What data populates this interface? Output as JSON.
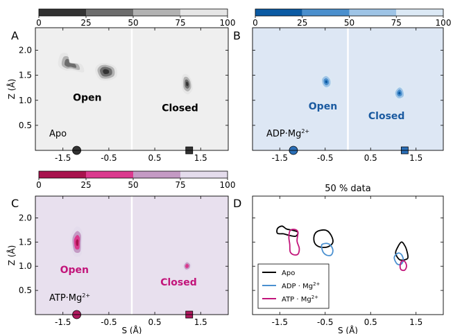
{
  "figure": {
    "colorbar_ticks": [
      "0",
      "25",
      "50",
      "75",
      "100"
    ],
    "center_title": "50 % data",
    "panel_letters": [
      "A",
      "B",
      "C",
      "D"
    ]
  },
  "chart_data": [
    {
      "type": "heatmap",
      "panel": "A",
      "ylabel": "Z (Å)",
      "xlabel": "",
      "condition": "Apo",
      "xlim": [
        -2.1,
        2.1
      ],
      "ylim": [
        0,
        2.45
      ],
      "x_ticks": [
        "-1.5",
        "-0.5",
        "0.5",
        "1.5"
      ],
      "y_ticks": [
        "0.5",
        "1.0",
        "1.5",
        "2.0"
      ],
      "background": "#efefef",
      "colorbar_colors": [
        "#333333",
        "#6d6d6d",
        "#b2b2b2",
        "#e6e6e6"
      ],
      "labels": {
        "open": "Open",
        "closed": "Closed"
      },
      "label_color": "#000000",
      "dividing_line_s": 0
    },
    {
      "type": "heatmap",
      "panel": "B",
      "ylabel": "",
      "xlabel": "",
      "condition": "ADP·Mg",
      "condition_sup": "2+",
      "xlim": [
        -2.1,
        2.1
      ],
      "ylim": [
        0,
        2.45
      ],
      "x_ticks": [
        "-1.5",
        "-0.5",
        "0.5",
        "1.5"
      ],
      "y_ticks": [],
      "background": "#dde7f4",
      "colorbar_colors": [
        "#0b5aa3",
        "#4a8fcd",
        "#9ec4e6",
        "#dce9f5"
      ],
      "labels": {
        "open": "Open",
        "closed": "Closed"
      },
      "label_color": "#1a5aa0",
      "dividing_line_s": 0
    },
    {
      "type": "heatmap",
      "panel": "C",
      "ylabel": "Z (Å)",
      "xlabel": "S (Å)",
      "condition": "ATP·Mg",
      "condition_sup": "2+",
      "xlim": [
        -2.1,
        2.1
      ],
      "ylim": [
        0,
        2.45
      ],
      "x_ticks": [
        "-1.5",
        "-0.5",
        "0.5",
        "1.5"
      ],
      "y_ticks": [
        "0.5",
        "1.0",
        "1.5",
        "2.0"
      ],
      "background": "#e8e0ee",
      "colorbar_colors": [
        "#a8134e",
        "#db3a8e",
        "#c49ac4",
        "#e4dcec"
      ],
      "labels": {
        "open": "Open",
        "closed": "Closed"
      },
      "label_color": "#c2147a",
      "dividing_line_s": 0
    },
    {
      "type": "line",
      "panel": "D",
      "ylabel": "",
      "xlabel": "S (Å)",
      "xlim": [
        -2.1,
        2.1
      ],
      "ylim": [
        0,
        2.45
      ],
      "x_ticks": [
        "-1.5",
        "-0.5",
        "0.5",
        "1.5"
      ],
      "y_ticks": [],
      "legend_position": "lower-left",
      "series": [
        {
          "name": "Apo",
          "color": "#000000",
          "contours": [
            [
              [
                -1.55,
                1.78
              ],
              [
                -1.45,
                1.83
              ],
              [
                -1.35,
                1.77
              ],
              [
                -1.2,
                1.74
              ],
              [
                -1.1,
                1.7
              ],
              [
                -1.15,
                1.62
              ],
              [
                -1.3,
                1.64
              ],
              [
                -1.42,
                1.67
              ],
              [
                -1.55,
                1.68
              ],
              [
                -1.55,
                1.78
              ]
            ],
            [
              [
                -0.75,
                1.55
              ],
              [
                -0.72,
                1.68
              ],
              [
                -0.62,
                1.74
              ],
              [
                -0.47,
                1.74
              ],
              [
                -0.37,
                1.64
              ],
              [
                -0.33,
                1.5
              ],
              [
                -0.42,
                1.41
              ],
              [
                -0.57,
                1.39
              ],
              [
                -0.7,
                1.44
              ],
              [
                -0.75,
                1.55
              ]
            ],
            [
              [
                1.1,
                1.4
              ],
              [
                1.05,
                1.27
              ],
              [
                1.13,
                1.14
              ],
              [
                1.23,
                1.13
              ],
              [
                1.32,
                1.17
              ],
              [
                1.3,
                1.31
              ],
              [
                1.25,
                1.43
              ],
              [
                1.18,
                1.5
              ],
              [
                1.1,
                1.4
              ]
            ]
          ]
        },
        {
          "name": "ADP · Mg",
          "sup": "2+",
          "color": "#4a90d0",
          "contours": [
            [
              [
                -0.58,
                1.42
              ],
              [
                -0.55,
                1.3
              ],
              [
                -0.47,
                1.23
              ],
              [
                -0.37,
                1.23
              ],
              [
                -0.33,
                1.32
              ],
              [
                -0.37,
                1.42
              ],
              [
                -0.45,
                1.47
              ],
              [
                -0.55,
                1.46
              ],
              [
                -0.58,
                1.42
              ]
            ],
            [
              [
                1.02,
                1.18
              ],
              [
                1.08,
                1.05
              ],
              [
                1.17,
                1.04
              ],
              [
                1.22,
                1.13
              ],
              [
                1.18,
                1.24
              ],
              [
                1.1,
                1.27
              ],
              [
                1.02,
                1.18
              ]
            ]
          ]
        },
        {
          "name": "ATP · Mg",
          "sup": "2+",
          "color": "#c2147a",
          "contours": [
            [
              [
                -1.3,
                1.6
              ],
              [
                -1.27,
                1.74
              ],
              [
                -1.16,
                1.76
              ],
              [
                -1.1,
                1.7
              ],
              [
                -1.12,
                1.52
              ],
              [
                -1.07,
                1.37
              ],
              [
                -1.1,
                1.25
              ],
              [
                -1.2,
                1.24
              ],
              [
                -1.27,
                1.3
              ],
              [
                -1.28,
                1.45
              ],
              [
                -1.3,
                1.6
              ]
            ],
            [
              [
                1.15,
                1.02
              ],
              [
                1.17,
                0.93
              ],
              [
                1.25,
                0.92
              ],
              [
                1.29,
                1.0
              ],
              [
                1.26,
                1.09
              ],
              [
                1.19,
                1.11
              ],
              [
                1.15,
                1.02
              ]
            ]
          ]
        }
      ]
    }
  ]
}
